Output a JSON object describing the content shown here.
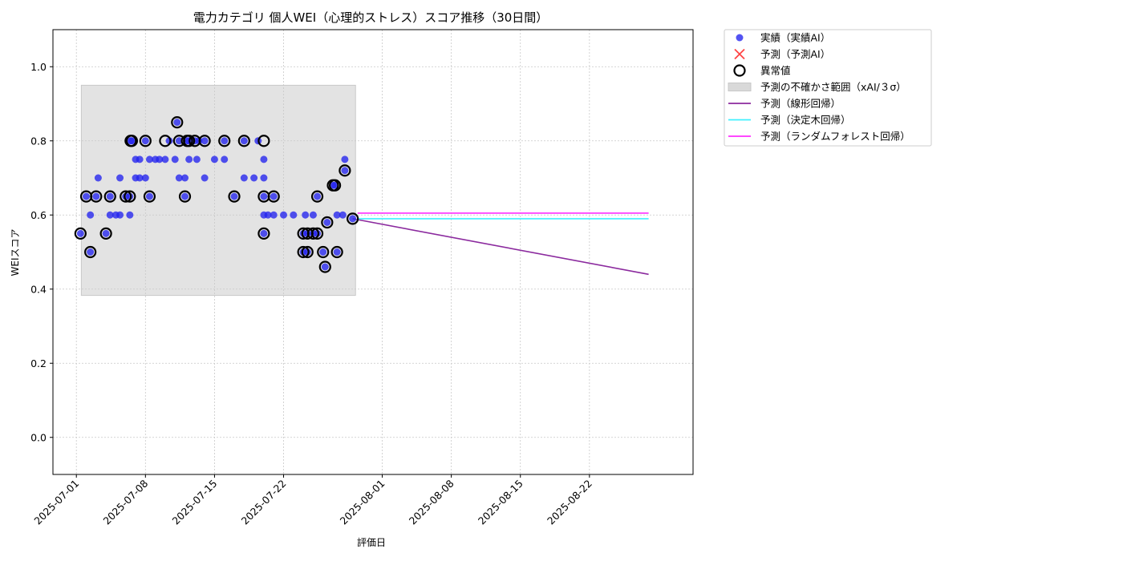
{
  "chart_data": {
    "type": "scatter",
    "title": "電力カテゴリ 個人WEI（心理的ストレス）スコア推移（30日間）",
    "xlabel": "評価日",
    "ylabel": "WEIスコア",
    "ylim": [
      -0.1,
      1.1
    ],
    "y_ticks": [
      0.0,
      0.2,
      0.4,
      0.6,
      0.8,
      1.0
    ],
    "x_ticks": [
      "2025-07-01",
      "2025-07-08",
      "2025-07-15",
      "2025-07-22",
      "2025-08-01",
      "2025-08-08",
      "2025-08-15",
      "2025-08-22"
    ],
    "xlim": [
      "2025-06-28T15:00",
      "2025-09-01T12:00"
    ],
    "grid": true,
    "legend_position": "outside-top-right",
    "colors": {
      "actual": "#2222ee",
      "predicted": "#ff4444",
      "anomaly": "#000000",
      "uncertainty": "#d9d9d9",
      "linear": "#8b2a9e",
      "tree": "#3ff0ff",
      "forest": "#ff2eff"
    },
    "legend": [
      {
        "key": "actual",
        "label": "実績（実績AI）",
        "marker": "dot"
      },
      {
        "key": "predicted",
        "label": "予測（予測AI）",
        "marker": "cross"
      },
      {
        "key": "anomaly",
        "label": "異常値",
        "marker": "ring"
      },
      {
        "key": "uncertainty",
        "label": "予測の不確かさ範囲（xAI/３σ）",
        "marker": "band"
      },
      {
        "key": "linear",
        "label": "予測（線形回帰）",
        "marker": "line"
      },
      {
        "key": "tree",
        "label": "予測（決定木回帰）",
        "marker": "line"
      },
      {
        "key": "forest",
        "label": "予測（ランダムフォレスト回帰）",
        "marker": "line"
      }
    ],
    "uncertainty_band": {
      "x_start": "2025-07-01T12:00",
      "x_end": "2025-07-29T07:00",
      "y_low": 0.383,
      "y_high": 0.95
    },
    "actual_points": [
      [
        "2025-07-01T10:00",
        0.55
      ],
      [
        "2025-07-02T00:00",
        0.65
      ],
      [
        "2025-07-02T10:00",
        0.5
      ],
      [
        "2025-07-02T10:00",
        0.6
      ],
      [
        "2025-07-03T00:00",
        0.65
      ],
      [
        "2025-07-03T05:00",
        0.7
      ],
      [
        "2025-07-04T00:00",
        0.55
      ],
      [
        "2025-07-04T10:00",
        0.6
      ],
      [
        "2025-07-04T10:00",
        0.65
      ],
      [
        "2025-07-05T00:00",
        0.6
      ],
      [
        "2025-07-05T10:00",
        0.6
      ],
      [
        "2025-07-05T10:00",
        0.7
      ],
      [
        "2025-07-06T00:00",
        0.65
      ],
      [
        "2025-07-06T10:00",
        0.6
      ],
      [
        "2025-07-06T10:00",
        0.65
      ],
      [
        "2025-07-06T12:00",
        0.8
      ],
      [
        "2025-07-06T15:00",
        0.8
      ],
      [
        "2025-07-07T00:00",
        0.75
      ],
      [
        "2025-07-07T00:00",
        0.7
      ],
      [
        "2025-07-07T10:00",
        0.75
      ],
      [
        "2025-07-07T10:00",
        0.7
      ],
      [
        "2025-07-08T00:00",
        0.7
      ],
      [
        "2025-07-08T00:00",
        0.8
      ],
      [
        "2025-07-08T10:00",
        0.75
      ],
      [
        "2025-07-08T10:00",
        0.65
      ],
      [
        "2025-07-09T00:00",
        0.75
      ],
      [
        "2025-07-09T10:00",
        0.75
      ],
      [
        "2025-07-10T00:00",
        0.75
      ],
      [
        "2025-07-10T10:00",
        0.8
      ],
      [
        "2025-07-11T00:00",
        0.75
      ],
      [
        "2025-07-11T05:00",
        0.85
      ],
      [
        "2025-07-11T10:00",
        0.7
      ],
      [
        "2025-07-11T10:00",
        0.8
      ],
      [
        "2025-07-12T00:00",
        0.65
      ],
      [
        "2025-07-12T00:00",
        0.7
      ],
      [
        "2025-07-12T05:00",
        0.8
      ],
      [
        "2025-07-12T10:00",
        0.75
      ],
      [
        "2025-07-12T10:00",
        0.8
      ],
      [
        "2025-07-13T00:00",
        0.8
      ],
      [
        "2025-07-13T05:00",
        0.75
      ],
      [
        "2025-07-13T10:00",
        0.8
      ],
      [
        "2025-07-14T00:00",
        0.7
      ],
      [
        "2025-07-14T00:00",
        0.8
      ],
      [
        "2025-07-15T00:00",
        0.75
      ],
      [
        "2025-07-16T00:00",
        0.75
      ],
      [
        "2025-07-16T00:00",
        0.8
      ],
      [
        "2025-07-17T00:00",
        0.65
      ],
      [
        "2025-07-18T00:00",
        0.7
      ],
      [
        "2025-07-18T00:00",
        0.8
      ],
      [
        "2025-07-19T00:00",
        0.7
      ],
      [
        "2025-07-19T10:00",
        0.8
      ],
      [
        "2025-07-20T00:00",
        0.75
      ],
      [
        "2025-07-20T00:00",
        0.7
      ],
      [
        "2025-07-20T00:00",
        0.65
      ],
      [
        "2025-07-20T00:00",
        0.6
      ],
      [
        "2025-07-20T00:00",
        0.55
      ],
      [
        "2025-07-20T10:00",
        0.6
      ],
      [
        "2025-07-21T00:00",
        0.65
      ],
      [
        "2025-07-21T00:00",
        0.6
      ],
      [
        "2025-07-22T00:00",
        0.6
      ],
      [
        "2025-07-23T00:00",
        0.6
      ],
      [
        "2025-07-24T00:00",
        0.55
      ],
      [
        "2025-07-24T00:00",
        0.5
      ],
      [
        "2025-07-24T05:00",
        0.6
      ],
      [
        "2025-07-24T10:00",
        0.55
      ],
      [
        "2025-07-24T10:00",
        0.5
      ],
      [
        "2025-07-25T00:00",
        0.55
      ],
      [
        "2025-07-25T00:00",
        0.6
      ],
      [
        "2025-07-25T10:00",
        0.65
      ],
      [
        "2025-07-25T10:00",
        0.55
      ],
      [
        "2025-07-26T00:00",
        0.5
      ],
      [
        "2025-07-26T05:00",
        0.46
      ],
      [
        "2025-07-26T10:00",
        0.58
      ],
      [
        "2025-07-27T00:00",
        0.68
      ],
      [
        "2025-07-27T05:00",
        0.68
      ],
      [
        "2025-07-27T10:00",
        0.6
      ],
      [
        "2025-07-27T10:00",
        0.5
      ],
      [
        "2025-07-28T00:00",
        0.6
      ],
      [
        "2025-07-28T05:00",
        0.72
      ],
      [
        "2025-07-28T05:00",
        0.75
      ],
      [
        "2025-07-29T00:00",
        0.59
      ]
    ],
    "anomaly_points": [
      [
        "2025-07-01T10:00",
        0.55
      ],
      [
        "2025-07-02T00:00",
        0.65
      ],
      [
        "2025-07-02T10:00",
        0.5
      ],
      [
        "2025-07-03T00:00",
        0.65
      ],
      [
        "2025-07-04T00:00",
        0.55
      ],
      [
        "2025-07-04T10:00",
        0.65
      ],
      [
        "2025-07-06T00:00",
        0.65
      ],
      [
        "2025-07-06T10:00",
        0.65
      ],
      [
        "2025-07-06T12:00",
        0.8
      ],
      [
        "2025-07-06T15:00",
        0.8
      ],
      [
        "2025-07-08T00:00",
        0.8
      ],
      [
        "2025-07-08T10:00",
        0.65
      ],
      [
        "2025-07-10T00:00",
        0.8
      ],
      [
        "2025-07-11T05:00",
        0.85
      ],
      [
        "2025-07-11T10:00",
        0.8
      ],
      [
        "2025-07-12T00:00",
        0.65
      ],
      [
        "2025-07-12T05:00",
        0.8
      ],
      [
        "2025-07-12T10:00",
        0.8
      ],
      [
        "2025-07-13T00:00",
        0.8
      ],
      [
        "2025-07-14T00:00",
        0.8
      ],
      [
        "2025-07-16T00:00",
        0.8
      ],
      [
        "2025-07-17T00:00",
        0.65
      ],
      [
        "2025-07-18T00:00",
        0.8
      ],
      [
        "2025-07-20T00:00",
        0.8
      ],
      [
        "2025-07-20T00:00",
        0.65
      ],
      [
        "2025-07-20T00:00",
        0.55
      ],
      [
        "2025-07-21T00:00",
        0.65
      ],
      [
        "2025-07-24T00:00",
        0.55
      ],
      [
        "2025-07-24T00:00",
        0.5
      ],
      [
        "2025-07-24T10:00",
        0.55
      ],
      [
        "2025-07-24T10:00",
        0.5
      ],
      [
        "2025-07-25T00:00",
        0.55
      ],
      [
        "2025-07-25T10:00",
        0.65
      ],
      [
        "2025-07-25T10:00",
        0.55
      ],
      [
        "2025-07-26T00:00",
        0.5
      ],
      [
        "2025-07-26T05:00",
        0.46
      ],
      [
        "2025-07-26T10:00",
        0.58
      ],
      [
        "2025-07-27T00:00",
        0.68
      ],
      [
        "2025-07-27T05:00",
        0.68
      ],
      [
        "2025-07-27T10:00",
        0.5
      ],
      [
        "2025-07-28T05:00",
        0.72
      ],
      [
        "2025-07-29T00:00",
        0.59
      ]
    ],
    "prediction_lines": [
      {
        "key": "linear",
        "points": [
          [
            "2025-07-29T00:00",
            0.59
          ],
          [
            "2025-08-28T00:00",
            0.44
          ]
        ]
      },
      {
        "key": "tree",
        "points": [
          [
            "2025-07-29T12:00",
            0.59
          ],
          [
            "2025-08-28T00:00",
            0.59
          ]
        ]
      },
      {
        "key": "forest",
        "points": [
          [
            "2025-07-29T12:00",
            0.605
          ],
          [
            "2025-08-28T00:00",
            0.605
          ]
        ]
      }
    ]
  }
}
